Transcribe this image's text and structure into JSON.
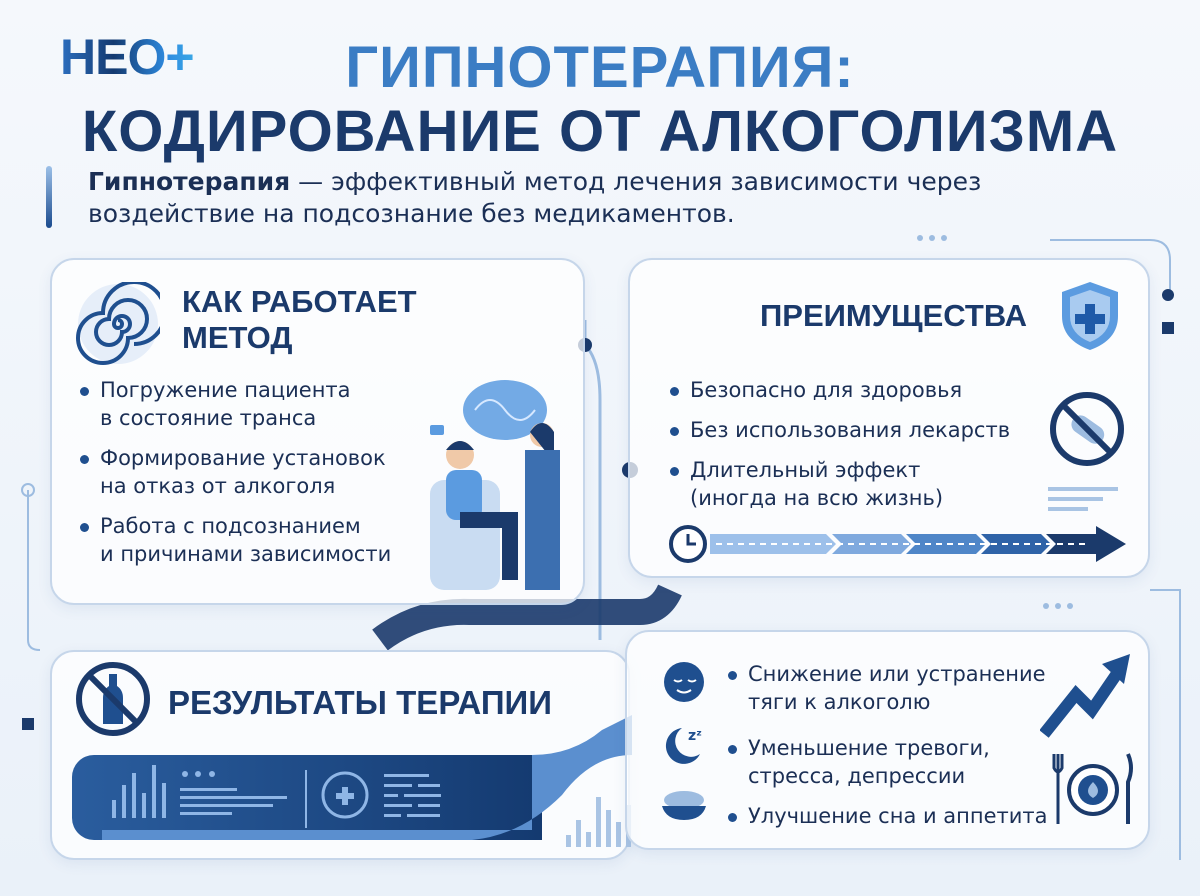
{
  "logo": "НЕО+",
  "title": {
    "line1": "ГИПНОТЕРАПИЯ:",
    "line2": "КОДИРОВАНИЕ ОТ АЛКОГОЛИЗМА"
  },
  "intro": {
    "bold": "Гипнотерапия",
    "rest": " — эффективный метод лечения зависимости через воздействие на подсознание без медикаментов."
  },
  "method": {
    "heading_1": "КАК РАБОТАЕТ",
    "heading_2": "МЕТОД",
    "icon": "spiral-icon",
    "items": [
      {
        "l1": "Погружение пациента",
        "l2": "в состояние транса"
      },
      {
        "l1": "Формирование установок",
        "l2": "на отказ от алкоголя"
      },
      {
        "l1": "Работа с подсознанием",
        "l2": "и причинами зависимости"
      }
    ]
  },
  "advantages": {
    "heading": "ПРЕИМУЩЕСТВА",
    "icon": "shield-plus-icon",
    "items": [
      {
        "l1": "Безопасно для здоровья"
      },
      {
        "l1": "Без использования лекарств"
      },
      {
        "l1": "Длительный эффект",
        "l2": "(иногда на всю жизнь)"
      }
    ]
  },
  "results": {
    "heading": "РЕЗУЛЬТАТЫ ТЕРАПИИ",
    "icon": "no-alcohol-icon",
    "items": [
      {
        "l1": "Снижение или устранение",
        "l2": "тяги к алкоголю",
        "icon": "calm-face-icon"
      },
      {
        "l1": "Уменьшение тревоги,",
        "l2": "стресса, депрессии",
        "icon": "moon-sleep-icon"
      },
      {
        "l1": "Улучшение сна и аппетита",
        "icon": "food-bowl-icon"
      }
    ]
  },
  "colors": {
    "navy": "#1b3a6b",
    "accent": "#3b7dc4"
  }
}
